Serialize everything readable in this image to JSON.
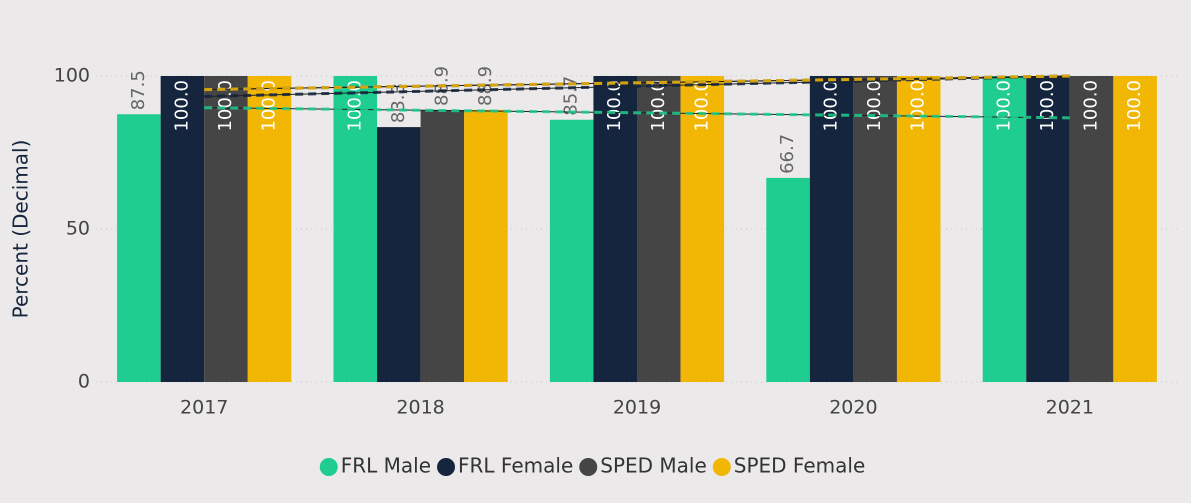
{
  "chart_data": {
    "type": "bar",
    "y_axis_label": "Percent (Decimal)",
    "categories": [
      "2017",
      "2018",
      "2019",
      "2020",
      "2021"
    ],
    "series": [
      {
        "name": "FRL Male",
        "color": "#1ecd8f",
        "values": [
          87.5,
          100,
          85.7,
          66.7,
          100
        ],
        "value_labels": [
          "87.5",
          "100.0",
          "85.7",
          "66.7",
          "100.0"
        ]
      },
      {
        "name": "FRL Female",
        "color": "#14253d",
        "values": [
          100,
          83.3,
          100,
          100,
          100
        ],
        "value_labels": [
          "100.0",
          "83.3",
          "100.0",
          "100.0",
          "100.0"
        ]
      },
      {
        "name": "SPED Male",
        "color": "#454545",
        "values": [
          100,
          88.9,
          100,
          100,
          100
        ],
        "value_labels": [
          "100.0",
          "88.9",
          "100.0",
          "100.0",
          "100.0"
        ]
      },
      {
        "name": "SPED Female",
        "color": "#f2b705",
        "values": [
          100,
          88.9,
          100,
          100,
          100
        ],
        "value_labels": [
          "100.0",
          "88.9",
          "100.0",
          "100.0",
          "100.0"
        ]
      }
    ],
    "ylim": [
      0,
      100
    ],
    "yticks": [
      0,
      50,
      100
    ],
    "grid": true,
    "trend_lines": true,
    "legend": "bottom"
  }
}
